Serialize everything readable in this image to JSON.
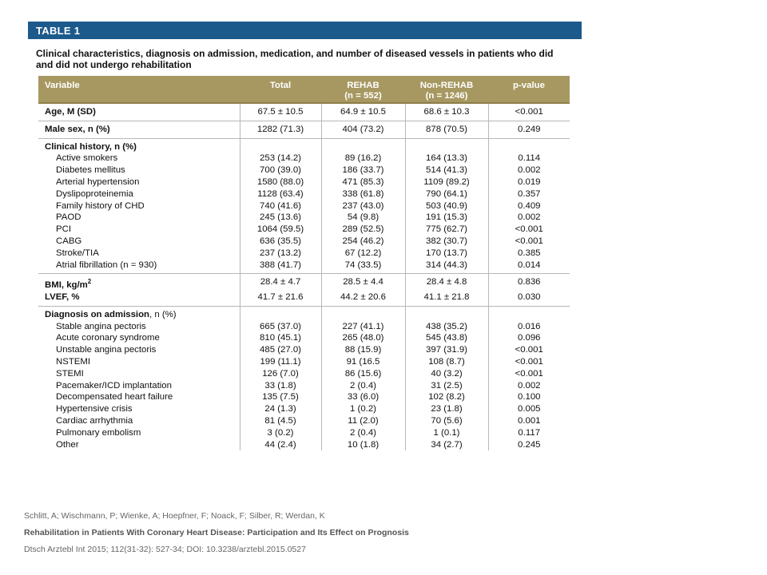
{
  "table": {
    "label": "TABLE 1",
    "caption": "Clinical characteristics, diagnosis on admission, medication, and number of diseased vessels in patients who did and did not undergo rehabilitation",
    "columns": {
      "variable": "Variable",
      "total": "Total",
      "rehab_line1": "REHAB",
      "rehab_line2": "(n = 552)",
      "nonrehab_line1": "Non-REHAB",
      "nonrehab_line2": "(n = 1246)",
      "pvalue": "p-value"
    },
    "rows": [
      {
        "label": "Age, M (SD)",
        "total": "67.5 ± 10.5",
        "rehab": "64.9 ± 10.5",
        "nonrehab": "68.6 ± 10.3",
        "p": "<0.001"
      },
      {
        "label": "Male sex, n (%)",
        "total": "1282 (71.3)",
        "rehab": "404 (73.2)",
        "nonrehab": "878 (70.5)",
        "p": "0.249"
      },
      {
        "label": "Clinical history, n (%)"
      },
      {
        "label": "Active smokers",
        "total": "253 (14.2)",
        "rehab": "89 (16.2)",
        "nonrehab": "164 (13.3)",
        "p": "0.114"
      },
      {
        "label": "Diabetes mellitus",
        "total": "700 (39.0)",
        "rehab": "186 (33.7)",
        "nonrehab": "514 (41.3)",
        "p": "0.002"
      },
      {
        "label": "Arterial hypertension",
        "total": "1580 (88.0)",
        "rehab": "471 (85.3)",
        "nonrehab": "1109 (89.2)",
        "p": "0.019"
      },
      {
        "label": "Dyslipoproteinemia",
        "total": "1128 (63.4)",
        "rehab": "338 (61.8)",
        "nonrehab": "790 (64.1)",
        "p": "0.357"
      },
      {
        "label": "Family history of CHD",
        "total": "740 (41.6)",
        "rehab": "237 (43.0)",
        "nonrehab": "503 (40.9)",
        "p": "0.409"
      },
      {
        "label": "PAOD",
        "total": "245 (13.6)",
        "rehab": "54 (9.8)",
        "nonrehab": "191 (15.3)",
        "p": "0.002"
      },
      {
        "label": "PCI",
        "total": "1064 (59.5)",
        "rehab": "289 (52.5)",
        "nonrehab": "775 (62.7)",
        "p": "<0.001"
      },
      {
        "label": "CABG",
        "total": "636 (35.5)",
        "rehab": "254 (46.2)",
        "nonrehab": "382 (30.7)",
        "p": "<0.001"
      },
      {
        "label": "Stroke/TIA",
        "total": "237 (13.2)",
        "rehab": "67 (12.2)",
        "nonrehab": "170 (13.7)",
        "p": "0.385"
      },
      {
        "label": "Atrial fibrillation (n = 930)",
        "total": "388 (41.7)",
        "rehab": "74 (33.5)",
        "nonrehab": "314 (44.3)",
        "p": "0.014"
      },
      {
        "label": "BMI, kg/m",
        "label_sup": "2",
        "total": "28.4 ± 4.7",
        "rehab": "28.5 ± 4.4",
        "nonrehab": "28.4 ± 4.8",
        "p": "0.836"
      },
      {
        "label": "LVEF, %",
        "total": "41.7 ± 21.6",
        "rehab": "44.2 ± 20.6",
        "nonrehab": "41.1 ± 21.8",
        "p": "0.030"
      },
      {
        "label": "Diagnosis on admission",
        "label_suffix": ", n (%)"
      },
      {
        "label": "Stable angina pectoris",
        "total": "665 (37.0)",
        "rehab": "227 (41.1)",
        "nonrehab": "438 (35.2)",
        "p": "0.016"
      },
      {
        "label": "Acute coronary syndrome",
        "total": "810 (45.1)",
        "rehab": "265 (48.0)",
        "nonrehab": "545 (43.8)",
        "p": "0.096"
      },
      {
        "label": "Unstable angina pectoris",
        "total": "485 (27.0)",
        "rehab": "88 (15.9)",
        "nonrehab": "397 (31.9)",
        "p": "<0.001"
      },
      {
        "label": "NSTEMI",
        "total": "199 (11.1)",
        "rehab": "91 (16.5",
        "nonrehab": "108 (8.7)",
        "p": "<0.001"
      },
      {
        "label": "STEMI",
        "total": "126 (7.0)",
        "rehab": "86 (15.6)",
        "nonrehab": "40 (3.2)",
        "p": "<0.001"
      },
      {
        "label": "Pacemaker/ICD implantation",
        "total": "33 (1.8)",
        "rehab": "2 (0.4)",
        "nonrehab": "31 (2.5)",
        "p": "0.002"
      },
      {
        "label": "Decompensated heart failure",
        "total": "135 (7.5)",
        "rehab": "33 (6.0)",
        "nonrehab": "102 (8.2)",
        "p": "0.100"
      },
      {
        "label": "Hypertensive crisis",
        "total": "24 (1.3)",
        "rehab": "1 (0.2)",
        "nonrehab": "23 (1.8)",
        "p": "0.005"
      },
      {
        "label": "Cardiac arrhythmia",
        "total": "81 (4.5)",
        "rehab": "11 (2.0)",
        "nonrehab": "70 (5.6)",
        "p": "0.001"
      },
      {
        "label": "Pulmonary embolism",
        "total": "3 (0.2)",
        "rehab": "2 (0.4)",
        "nonrehab": "1 (0.1)",
        "p": "0.117"
      },
      {
        "label": "Other",
        "total": "44 (2.4)",
        "rehab": "10 (1.8)",
        "nonrehab": "34 (2.7)",
        "p": "0.245"
      }
    ]
  },
  "citation": {
    "authors": "Schlitt, A; Wischmann, P; Wienke, A; Hoepfner, F; Noack, F; Silber, R; Werdan, K",
    "title": "Rehabilitation in Patients With Coronary Heart Disease: Participation and Its Effect on Prognosis",
    "source": "Dtsch Arztebl Int 2015; 112(31-32): 527-34; DOI: 10.3238/arztebl.2015.0527"
  },
  "colors": {
    "header_bar": "#1d5a8c",
    "column_header": "#a79861",
    "rule": "#b7b7b7"
  }
}
